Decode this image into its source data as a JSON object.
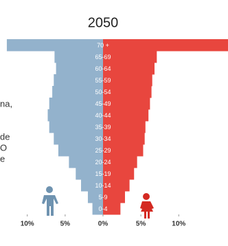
{
  "chart_data": {
    "type": "pyramid",
    "title": "2050",
    "categories": [
      "0-4",
      "5-9",
      "10-14",
      "15-19",
      "20-24",
      "25-29",
      "30-34",
      "35-39",
      "40-44",
      "45-49",
      "50-54",
      "55-59",
      "60-64",
      "65-69",
      "70 +"
    ],
    "series": [
      {
        "color": "#93b2cc",
        "values": [
          1.4,
          2.0,
          2.9,
          3.6,
          4.5,
          5.9,
          6.5,
          7.1,
          7.3,
          7.1,
          6.7,
          6.5,
          6.2,
          6.4,
          12.7
        ]
      },
      {
        "color": "#e8463e",
        "values": [
          2.3,
          2.9,
          3.5,
          4.1,
          4.5,
          5.3,
          5.5,
          5.6,
          6.0,
          6.2,
          6.4,
          6.5,
          6.8,
          7.1,
          16.5
        ]
      }
    ],
    "xlim": [
      -13.6,
      16.5
    ],
    "xticks": [
      {
        "value": -10,
        "label": "10%"
      },
      {
        "value": -5,
        "label": "5%"
      },
      {
        "value": 0,
        "label": "0%"
      },
      {
        "value": 5,
        "label": "5%"
      },
      {
        "value": 10,
        "label": "10%"
      }
    ],
    "annotations": [
      "na,",
      "de",
      "O",
      "e"
    ]
  }
}
